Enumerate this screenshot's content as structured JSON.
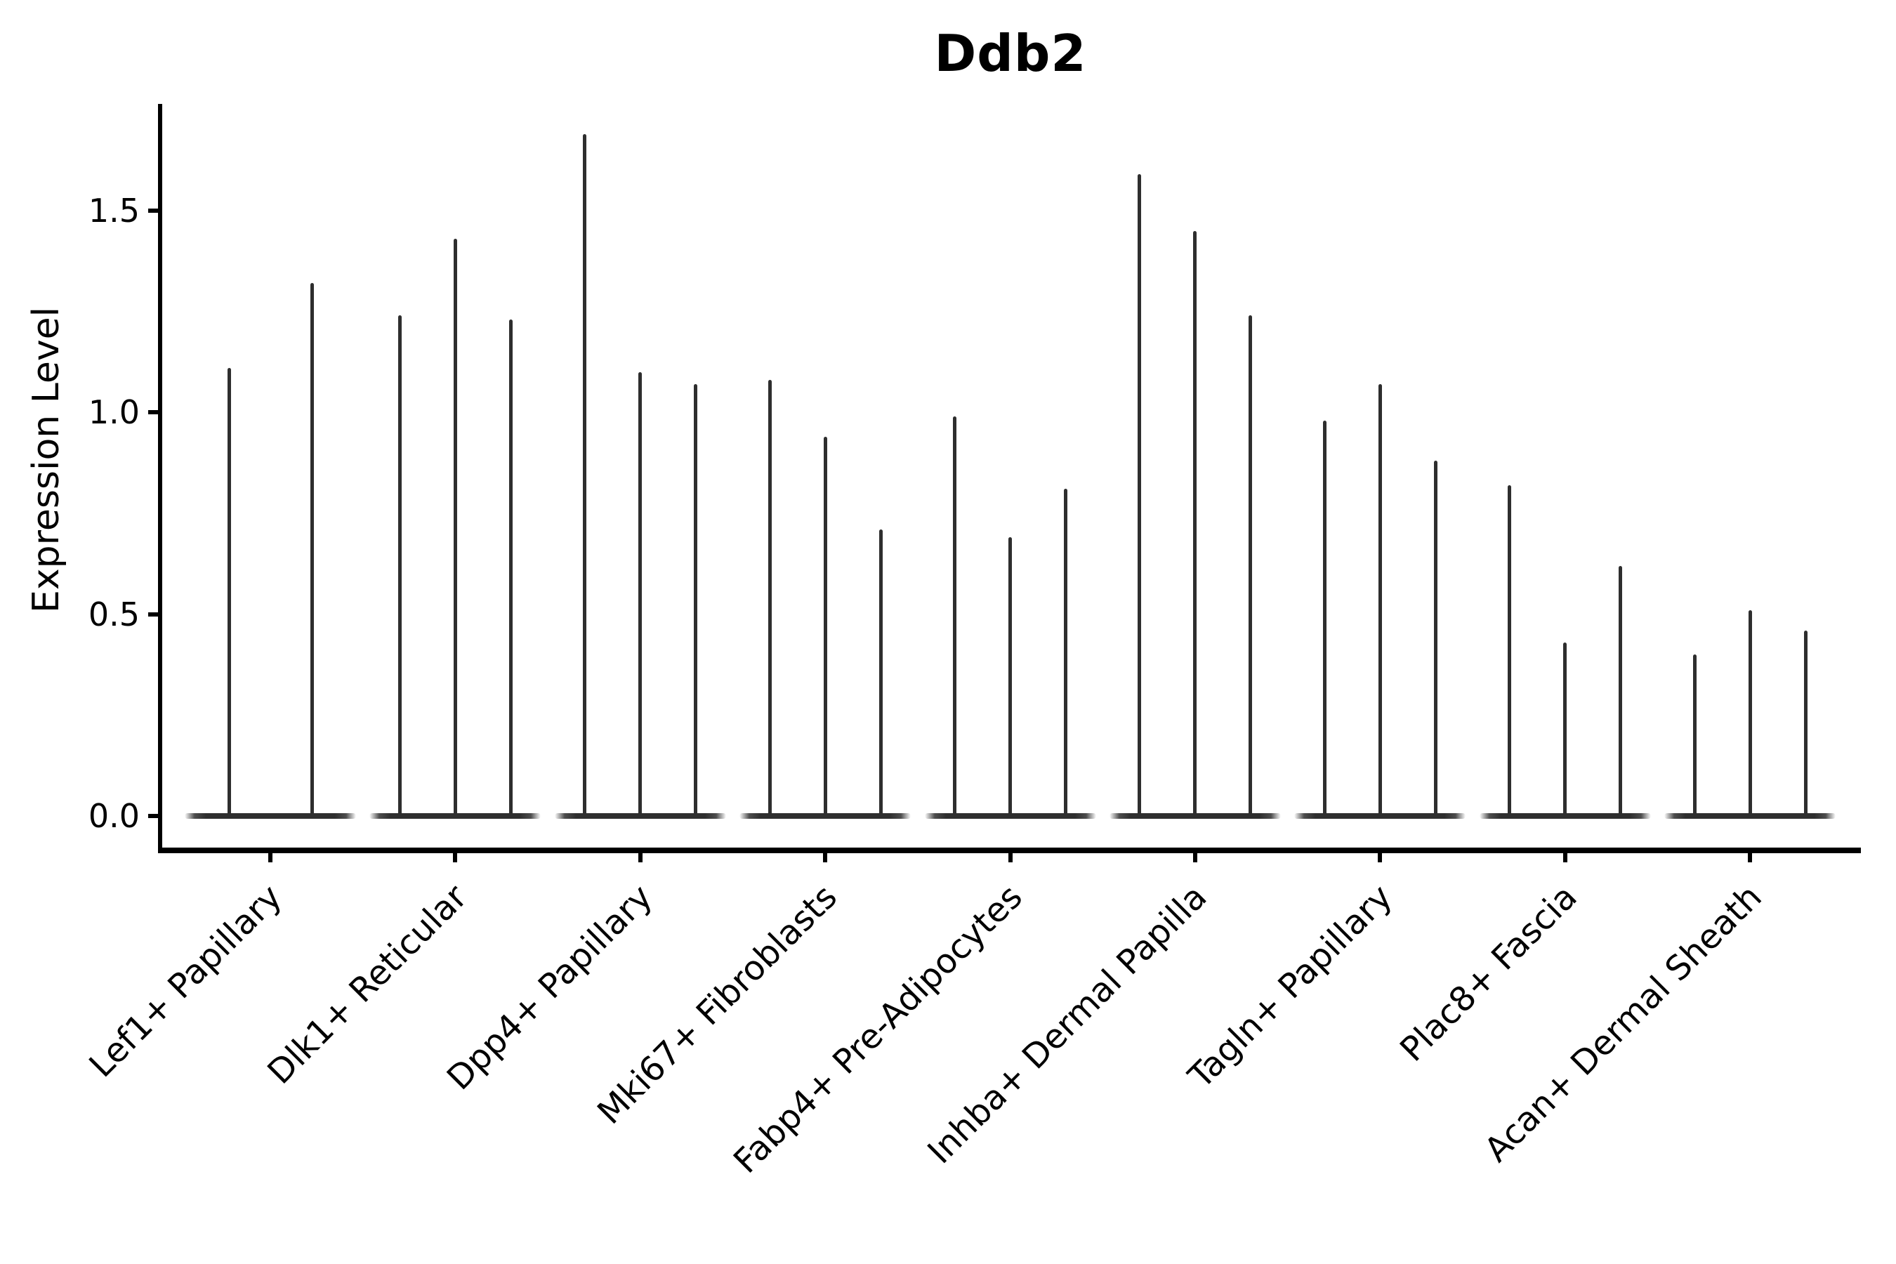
{
  "chart_data": {
    "type": "violin",
    "title": "Ddb2",
    "ylabel": "Expression Level",
    "xlabel": "",
    "y_ticks": [
      0.0,
      0.5,
      1.0,
      1.5
    ],
    "ylim": [
      -0.08,
      1.76
    ],
    "grid": false,
    "legend": "none",
    "violin_color": "#2e2e2e",
    "axis_color": "#000000",
    "categories": [
      "Lef1+ Papillary",
      "Dlk1+ Reticular",
      "Dpp4+ Papillary",
      "Mki67+ Fibroblasts",
      "Fabp4+ Pre-Adipocytes",
      "Inhba+ Dermal Papilla",
      "Tagln+ Papillary",
      "Plac8+ Fascia",
      "Acan+ Dermal Sheath"
    ],
    "series_note": "Each category shows narrow violins (most mass at 0); values are the violin tip heights (max expression), left to right within each category.",
    "values": [
      [
        1.11,
        1.32
      ],
      [
        1.24,
        1.43,
        1.23
      ],
      [
        1.69,
        1.1,
        1.07
      ],
      [
        1.08,
        0.94,
        0.71
      ],
      [
        0.99,
        0.69,
        0.81
      ],
      [
        1.59,
        1.45,
        1.24
      ],
      [
        0.98,
        1.07,
        0.88
      ],
      [
        0.82,
        0.43,
        0.62
      ],
      [
        0.4,
        0.51,
        0.46
      ]
    ]
  }
}
